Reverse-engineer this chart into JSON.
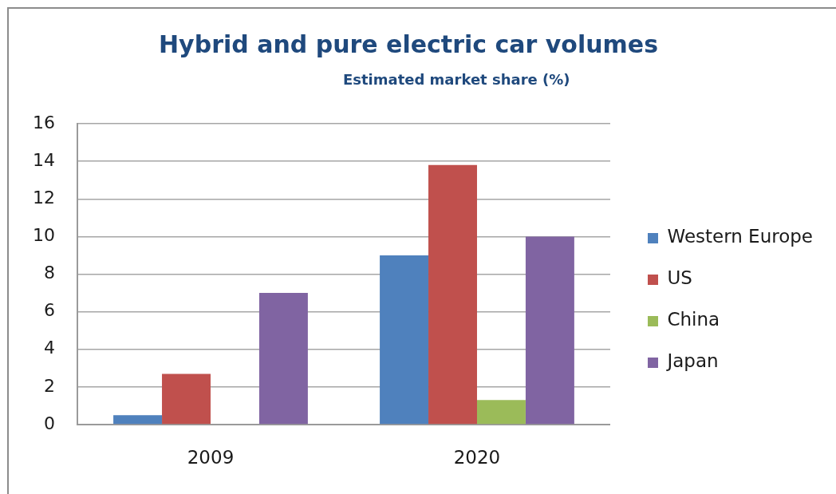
{
  "chart_data": {
    "type": "bar",
    "title": "Hybrid and pure electric car volumes",
    "subtitle": "Estimated market share (%)",
    "categories": [
      "2009",
      "2020"
    ],
    "series": [
      {
        "name": "Western Europe",
        "color": "#4f81bd",
        "values": [
          0.5,
          9
        ]
      },
      {
        "name": "US",
        "color": "#c0504d",
        "values": [
          2.7,
          13.8
        ]
      },
      {
        "name": "China",
        "color": "#9bbb59",
        "values": [
          0,
          1.3
        ]
      },
      {
        "name": "Japan",
        "color": "#8064a2",
        "values": [
          7,
          10
        ]
      }
    ],
    "ylim": [
      0,
      16
    ],
    "yticks": [
      0,
      2,
      4,
      6,
      8,
      10,
      12,
      14,
      16
    ],
    "grid": "y",
    "legend": "right"
  }
}
